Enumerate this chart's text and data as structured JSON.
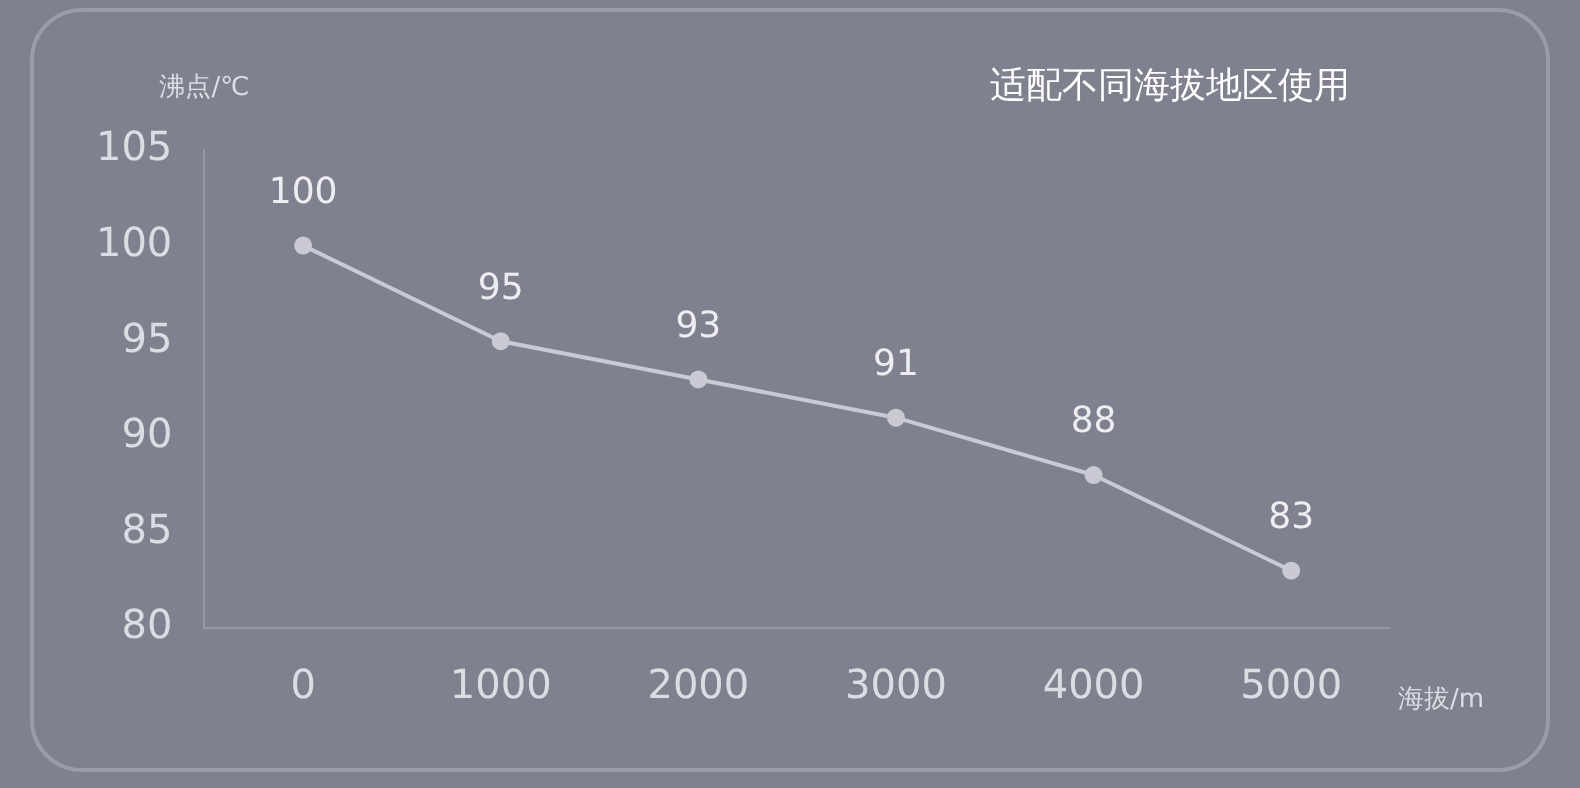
{
  "chart_data": {
    "type": "line",
    "title": "适配不同海拔地区使用",
    "xlabel": "海拔/m",
    "ylabel": "沸点/℃",
    "categories": [
      "0",
      "1000",
      "2000",
      "3000",
      "4000",
      "5000"
    ],
    "series": [
      {
        "color": "#c9cad3",
        "values": [
          100,
          95,
          93,
          91,
          88,
          83
        ]
      }
    ],
    "ylim": [
      80,
      105
    ],
    "yticks": [
      80,
      85,
      90,
      95,
      100,
      105
    ],
    "grid": false,
    "legend": false,
    "marker": "circle",
    "line_style": "solid",
    "data_labels": true
  }
}
